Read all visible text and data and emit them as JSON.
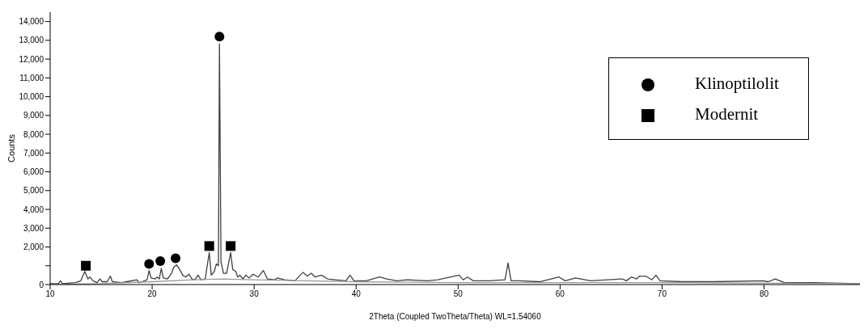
{
  "chart_data": {
    "type": "line",
    "xlabel": "2Theta (Coupled TwoTheta/Theta) WL=1.54060",
    "ylabel": "Counts",
    "xlim": [
      10,
      89.4
    ],
    "xticks": [
      10,
      20,
      30,
      40,
      50,
      60,
      70,
      80
    ],
    "ylim": [
      0,
      14500
    ],
    "yticks": [
      0,
      {
        "value": 1000,
        "label": null
      },
      {
        "value": 2000,
        "label": "2,000"
      },
      {
        "value": 3000,
        "label": "3,000"
      },
      {
        "value": 4000,
        "label": "4,000"
      },
      {
        "value": 5000,
        "label": "5,000"
      },
      {
        "value": 6000,
        "label": "6,000"
      },
      {
        "value": 7000,
        "label": "7,000"
      },
      {
        "value": 8000,
        "label": "8,000"
      },
      {
        "value": 9000,
        "label": "9,000"
      },
      {
        "value": 10000,
        "label": "10,000"
      },
      {
        "value": 11000,
        "label": "11,000"
      },
      {
        "value": 12000,
        "label": "12,000"
      },
      {
        "value": 13000,
        "label": "13,000"
      },
      {
        "value": 14000,
        "label": "14,000"
      }
    ],
    "grid": false,
    "legend": "top right",
    "series": [
      {
        "type": "line",
        "color": "#404040",
        "marker": "none",
        "x": [
          10,
          10.8,
          11,
          11.2,
          12.5,
          13,
          13.4,
          13.7,
          13.9,
          14.2,
          14.6,
          14.9,
          15.1,
          15.6,
          15.9,
          16.1,
          17,
          17.5,
          18.5,
          18.7,
          19,
          19.5,
          19.7,
          19.9,
          20.3,
          20.5,
          20.7,
          20.9,
          21.1,
          21.5,
          21.9,
          22.1,
          22.4,
          22.7,
          23,
          23.3,
          23.6,
          23.9,
          24.2,
          24.5,
          24.8,
          25.2,
          25.6,
          25.8,
          26.1,
          26.3,
          26.5,
          26.6,
          26.75,
          27,
          27.3,
          27.7,
          27.9,
          28.2,
          28.4,
          28.6,
          28.9,
          29.2,
          29.5,
          29.9,
          30.4,
          30.9,
          31.3,
          32,
          32.3,
          33,
          34,
          34.8,
          35.2,
          35.6,
          36,
          36.6,
          37.2,
          38,
          39,
          39.4,
          39.8,
          41,
          42.3,
          43,
          44,
          45,
          47,
          48,
          50.1,
          50.5,
          50.9,
          51.5,
          53,
          54.6,
          54.9,
          55.2,
          56,
          58,
          59.9,
          60.5,
          61.5,
          63,
          66.1,
          66.5,
          67,
          67.5,
          67.8,
          68.4,
          69,
          69.4,
          69.8,
          72,
          75,
          79.9,
          80.4,
          81.1,
          82,
          85,
          89.4
        ],
        "values": [
          50,
          50,
          200,
          50,
          100,
          200,
          700,
          300,
          400,
          200,
          100,
          300,
          150,
          150,
          450,
          150,
          100,
          150,
          250,
          100,
          150,
          250,
          750,
          350,
          300,
          400,
          300,
          850,
          350,
          300,
          600,
          900,
          1050,
          800,
          500,
          400,
          550,
          300,
          250,
          500,
          250,
          300,
          1700,
          500,
          700,
          1100,
          1000,
          12800,
          1200,
          600,
          600,
          1700,
          800,
          700,
          400,
          500,
          300,
          500,
          350,
          550,
          400,
          750,
          300,
          250,
          350,
          250,
          200,
          650,
          450,
          600,
          400,
          500,
          300,
          250,
          200,
          500,
          200,
          200,
          400,
          300,
          200,
          250,
          200,
          250,
          500,
          250,
          400,
          200,
          200,
          250,
          1150,
          200,
          200,
          150,
          400,
          200,
          350,
          200,
          300,
          200,
          400,
          300,
          450,
          450,
          250,
          500,
          200,
          150,
          150,
          200,
          150,
          300,
          100,
          100,
          50
        ]
      },
      {
        "type": "line",
        "color": "#9a9a9a",
        "marker": "none",
        "x": [
          10,
          15,
          20,
          24,
          27,
          30,
          35,
          40,
          50,
          60,
          70,
          89.4
        ],
        "values": [
          0,
          50,
          150,
          250,
          300,
          250,
          200,
          150,
          100,
          100,
          100,
          50
        ]
      },
      {
        "type": "scatter",
        "name": "Klinoptilolit",
        "color": "#000000",
        "marker": "circle",
        "x": [
          19.7,
          20.8,
          22.3,
          26.6
        ],
        "values": [
          1100,
          1250,
          1400,
          13200
        ]
      },
      {
        "type": "scatter",
        "name": "Modernit",
        "color": "#000000",
        "marker": "square",
        "x": [
          13.5,
          25.6,
          27.7
        ],
        "values": [
          1000,
          2050,
          2050
        ]
      }
    ]
  }
}
